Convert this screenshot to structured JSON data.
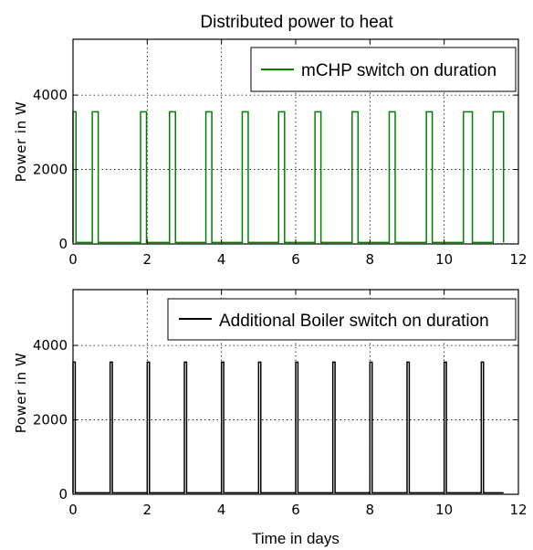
{
  "chart_data": [
    {
      "type": "line",
      "title": "Distributed power to heat",
      "xlabel": "",
      "ylabel": "Power in W",
      "xlim": [
        0,
        12
      ],
      "ylim": [
        0,
        5500
      ],
      "xticks": [
        0,
        2,
        4,
        6,
        8,
        10,
        12
      ],
      "yticks": [
        0,
        2000,
        4000
      ],
      "xtick_labels": [
        "0",
        "2",
        "4",
        "6",
        "8",
        "10",
        "12"
      ],
      "ytick_labels": [
        "0",
        "2000",
        "4000"
      ],
      "grid": true,
      "legend_position": "top-right",
      "series": [
        {
          "name": "mCHP switch on duration",
          "color": "#008000",
          "on_value": 3550,
          "off_value": 40,
          "x_end": 11.6,
          "on_intervals": [
            [
              0.0,
              0.08
            ],
            [
              0.52,
              0.68
            ],
            [
              1.82,
              1.98
            ],
            [
              2.6,
              2.76
            ],
            [
              3.58,
              3.74
            ],
            [
              4.56,
              4.72
            ],
            [
              5.54,
              5.7
            ],
            [
              6.52,
              6.68
            ],
            [
              7.52,
              7.68
            ],
            [
              8.52,
              8.68
            ],
            [
              9.52,
              9.68
            ],
            [
              10.52,
              10.76
            ],
            [
              11.32,
              11.6
            ]
          ]
        }
      ]
    },
    {
      "type": "line",
      "title": "",
      "xlabel": "Time in days",
      "ylabel": "Power in W",
      "xlim": [
        0,
        12
      ],
      "ylim": [
        0,
        5500
      ],
      "xticks": [
        0,
        2,
        4,
        6,
        8,
        10,
        12
      ],
      "yticks": [
        0,
        2000,
        4000
      ],
      "xtick_labels": [
        "0",
        "2",
        "4",
        "6",
        "8",
        "10",
        "12"
      ],
      "ytick_labels": [
        "0",
        "2000",
        "4000"
      ],
      "grid": true,
      "legend_position": "top-right",
      "series": [
        {
          "name": "Additional Boiler switch on duration",
          "color": "#000000",
          "on_value": 3550,
          "off_value": 40,
          "x_end": 11.6,
          "on_intervals": [
            [
              0.0,
              0.06
            ],
            [
              1.0,
              1.06
            ],
            [
              2.0,
              2.06
            ],
            [
              3.0,
              3.06
            ],
            [
              4.0,
              4.06
            ],
            [
              5.0,
              5.06
            ],
            [
              6.0,
              6.06
            ],
            [
              7.0,
              7.06
            ],
            [
              8.0,
              8.06
            ],
            [
              9.0,
              9.06
            ],
            [
              10.0,
              10.06
            ],
            [
              11.0,
              11.06
            ]
          ]
        }
      ]
    }
  ]
}
